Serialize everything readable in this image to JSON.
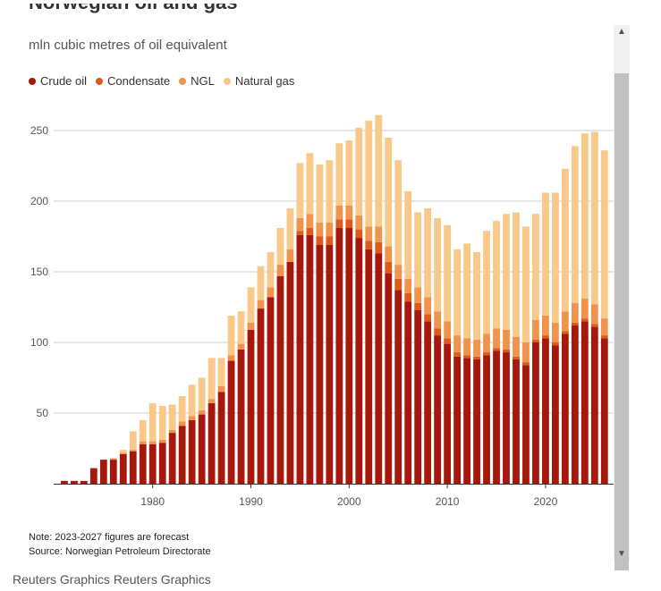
{
  "title": "Norwegian oil and gas production",
  "subtitle": "mln cubic metres of oil equivalent",
  "legend": [
    {
      "label": "Crude oil",
      "color": "#a5180b"
    },
    {
      "label": "Condensate",
      "color": "#dd5a19"
    },
    {
      "label": "NGL",
      "color": "#f0934c"
    },
    {
      "label": "Natural gas",
      "color": "#f9c98a"
    }
  ],
  "notes": {
    "note": "Note: 2023-2027 figures are forecast",
    "source": "Source: Norwegian Petroleum Directorate"
  },
  "footer": "Reuters Graphics Reuters Graphics",
  "scrollbar": {
    "up": "▲",
    "down": "▼"
  },
  "chart_data": {
    "type": "bar",
    "stacked": true,
    "title": "",
    "xlabel": "",
    "ylabel": "mln cubic metres of oil equivalent",
    "ylim": [
      0,
      270
    ],
    "yticks": [
      50,
      100,
      150,
      200,
      250
    ],
    "xticks": [
      1980,
      1990,
      2000,
      2010,
      2020
    ],
    "categories": [
      1971,
      1972,
      1973,
      1974,
      1975,
      1976,
      1977,
      1978,
      1979,
      1980,
      1981,
      1982,
      1983,
      1984,
      1985,
      1986,
      1987,
      1988,
      1989,
      1990,
      1991,
      1992,
      1993,
      1994,
      1995,
      1996,
      1997,
      1998,
      1999,
      2000,
      2001,
      2002,
      2003,
      2004,
      2005,
      2006,
      2007,
      2008,
      2009,
      2010,
      2011,
      2012,
      2013,
      2014,
      2015,
      2016,
      2017,
      2018,
      2019,
      2020,
      2021,
      2022,
      2023,
      2024,
      2025,
      2026,
      2027
    ],
    "series": [
      {
        "name": "Crude oil",
        "color": "#a5180b",
        "values": [
          2,
          2,
          2,
          11,
          17,
          17,
          21,
          23,
          28,
          28,
          29,
          36,
          41,
          45,
          49,
          57,
          65,
          87,
          95,
          109,
          124,
          132,
          147,
          157,
          176,
          176,
          169,
          169,
          181,
          181,
          174,
          166,
          163,
          149,
          137,
          129,
          123,
          115,
          105,
          99,
          90,
          89,
          88,
          91,
          94,
          93,
          88,
          84,
          100,
          103,
          98,
          106,
          112,
          115,
          111,
          103,
          0
        ]
      },
      {
        "name": "Condensate",
        "color": "#dd5a19",
        "values": [
          0,
          0,
          0,
          0,
          0,
          0,
          0,
          0,
          0,
          0,
          0,
          0,
          0,
          0,
          0,
          0,
          0,
          0,
          0,
          0,
          0,
          0,
          0,
          0,
          3,
          5,
          6,
          6,
          6,
          6,
          6,
          6,
          8,
          8,
          8,
          6,
          5,
          5,
          5,
          4,
          3,
          2,
          2,
          2,
          2,
          2,
          2,
          2,
          2,
          2,
          2,
          2,
          2,
          2,
          2,
          2,
          0
        ]
      },
      {
        "name": "NGL",
        "color": "#f0934c",
        "values": [
          0,
          0,
          0,
          0,
          0,
          1,
          1,
          1,
          2,
          2,
          2,
          2,
          3,
          3,
          3,
          3,
          4,
          4,
          4,
          5,
          6,
          7,
          8,
          9,
          9,
          10,
          10,
          10,
          10,
          10,
          10,
          10,
          11,
          11,
          10,
          10,
          11,
          12,
          12,
          12,
          12,
          12,
          12,
          13,
          14,
          14,
          14,
          14,
          14,
          14,
          14,
          14,
          14,
          14,
          14,
          12,
          0
        ]
      },
      {
        "name": "Natural gas",
        "color": "#f9c98a",
        "values": [
          0,
          0,
          0,
          0,
          0,
          0,
          2,
          13,
          15,
          27,
          24,
          18,
          18,
          22,
          23,
          29,
          20,
          28,
          23,
          25,
          24,
          25,
          26,
          29,
          39,
          43,
          41,
          44,
          44,
          46,
          62,
          75,
          79,
          77,
          74,
          62,
          53,
          63,
          66,
          68,
          61,
          67,
          62,
          73,
          76,
          82,
          88,
          82,
          75,
          87,
          92,
          101,
          111,
          117,
          122,
          119,
          0
        ]
      }
    ]
  }
}
